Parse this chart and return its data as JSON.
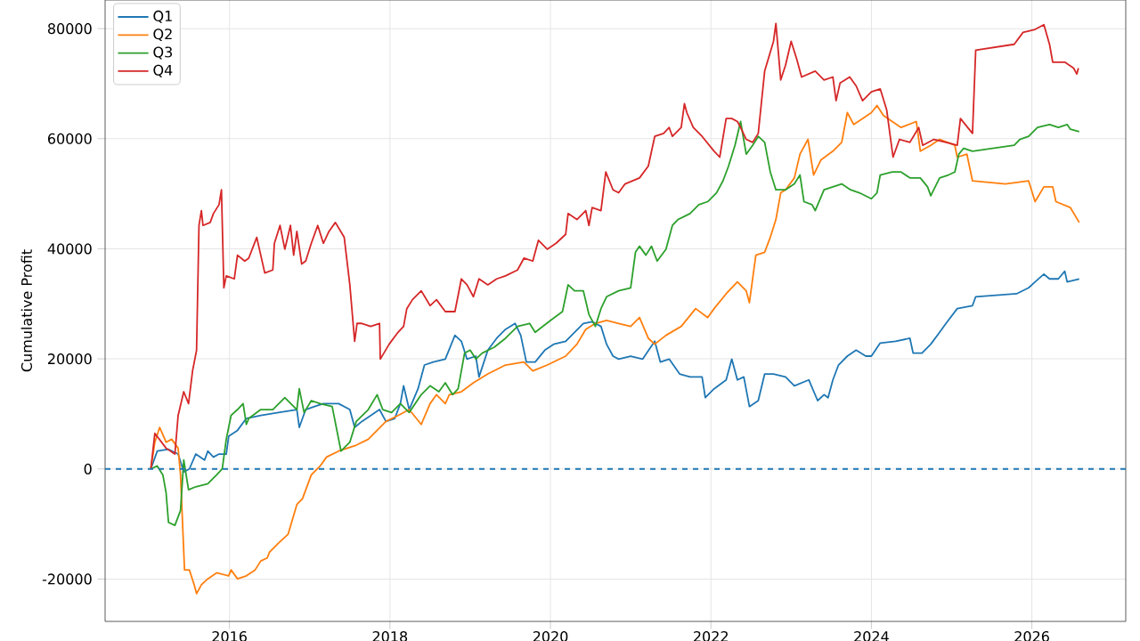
{
  "chart_data": {
    "type": "line",
    "ylabel": "Cumulative Profit",
    "xlim": [
      2014.45,
      2027.17
    ],
    "ylim": [
      -27700,
      85200
    ],
    "xticks": [
      2016,
      2018,
      2020,
      2022,
      2024,
      2026
    ],
    "yticks": [
      -20000,
      0,
      20000,
      40000,
      60000,
      80000
    ],
    "grid": true,
    "legend": "top left",
    "line_style": "solid",
    "ref_lines": [
      {
        "axis": "y",
        "value": 0,
        "color": "#1f77b4",
        "line_style": "dashed"
      }
    ],
    "series": [
      {
        "name": "Q1",
        "color": "#1f77b4",
        "x": [
          2015.02,
          2015.1,
          2015.24,
          2015.36,
          2015.43,
          2015.5,
          2015.58,
          2015.69,
          2015.73,
          2015.8,
          2015.87,
          2015.96,
          2015.99,
          2016.1,
          2016.21,
          2016.39,
          2016.61,
          2016.84,
          2016.87,
          2016.95,
          2017.06,
          2017.17,
          2017.36,
          2017.5,
          2017.56,
          2017.65,
          2017.87,
          2017.95,
          2018.06,
          2018.13,
          2018.17,
          2018.24,
          2018.35,
          2018.43,
          2018.54,
          2018.69,
          2018.81,
          2018.89,
          2018.96,
          2019.07,
          2019.11,
          2019.22,
          2019.33,
          2019.44,
          2019.56,
          2019.63,
          2019.7,
          2019.81,
          2019.93,
          2020.04,
          2020.19,
          2020.3,
          2020.41,
          2020.52,
          2020.63,
          2020.7,
          2020.78,
          2020.85,
          2021.0,
          2021.15,
          2021.3,
          2021.37,
          2021.48,
          2021.61,
          2021.74,
          2021.89,
          2021.93,
          2022.04,
          2022.19,
          2022.26,
          2022.33,
          2022.41,
          2022.48,
          2022.59,
          2022.67,
          2022.78,
          2022.93,
          2023.04,
          2023.22,
          2023.33,
          2023.41,
          2023.46,
          2023.52,
          2023.59,
          2023.7,
          2023.81,
          2023.93,
          2024.0,
          2024.11,
          2024.3,
          2024.48,
          2024.52,
          2024.63,
          2024.74,
          2024.85,
          2024.93,
          2025.07,
          2025.26,
          2025.3,
          2025.81,
          2025.96,
          2026.04,
          2026.15,
          2026.22,
          2026.33,
          2026.41,
          2026.44,
          2026.59
        ],
        "values": [
          0,
          3240,
          3560,
          2700,
          -540,
          0,
          2700,
          1620,
          3240,
          2160,
          2700,
          2700,
          5930,
          7010,
          9170,
          9710,
          10250,
          10790,
          7550,
          10790,
          11330,
          11870,
          11870,
          10790,
          7550,
          8630,
          10790,
          8630,
          9170,
          11870,
          15110,
          10790,
          14570,
          18880,
          19420,
          19960,
          24280,
          23200,
          19960,
          20500,
          16720,
          21580,
          23740,
          25360,
          26440,
          24280,
          19420,
          19420,
          21580,
          22660,
          23200,
          24820,
          26440,
          26760,
          25900,
          22660,
          20500,
          19960,
          20500,
          19960,
          23200,
          19420,
          19960,
          17260,
          16720,
          16720,
          12950,
          14570,
          16180,
          19960,
          16180,
          16720,
          11330,
          12410,
          17260,
          17260,
          16720,
          15110,
          16180,
          12410,
          13490,
          12950,
          16180,
          18880,
          20500,
          21580,
          20500,
          20500,
          22870,
          23200,
          23740,
          21040,
          21040,
          22660,
          24820,
          26440,
          29130,
          29670,
          31290,
          31830,
          32910,
          33990,
          35390,
          34530,
          34530,
          35930,
          33990,
          34530
        ]
      },
      {
        "name": "Q2",
        "color": "#ff7f0e",
        "x": [
          2015.02,
          2015.07,
          2015.13,
          2015.21,
          2015.28,
          2015.36,
          2015.39,
          2015.44,
          2015.5,
          2015.56,
          2015.59,
          2015.65,
          2015.73,
          2015.84,
          2015.99,
          2016.02,
          2016.1,
          2016.21,
          2016.32,
          2016.39,
          2016.47,
          2016.5,
          2016.61,
          2016.73,
          2016.84,
          2016.91,
          2017.02,
          2017.13,
          2017.21,
          2017.36,
          2017.58,
          2017.73,
          2017.84,
          2017.95,
          2018.1,
          2018.24,
          2018.39,
          2018.5,
          2018.58,
          2018.69,
          2018.74,
          2018.89,
          2019.04,
          2019.22,
          2019.44,
          2019.67,
          2019.78,
          2019.96,
          2020.19,
          2020.33,
          2020.44,
          2020.56,
          2020.7,
          2020.85,
          2021.0,
          2021.11,
          2021.22,
          2021.3,
          2021.44,
          2021.63,
          2021.81,
          2021.96,
          2022.04,
          2022.19,
          2022.33,
          2022.44,
          2022.48,
          2022.56,
          2022.67,
          2022.74,
          2022.81,
          2022.87,
          2022.93,
          2023.04,
          2023.11,
          2023.21,
          2023.28,
          2023.37,
          2023.52,
          2023.63,
          2023.7,
          2023.78,
          2023.89,
          2024.0,
          2024.07,
          2024.15,
          2024.26,
          2024.37,
          2024.56,
          2024.61,
          2024.74,
          2024.85,
          2025.04,
          2025.07,
          2025.19,
          2025.26,
          2025.67,
          2025.96,
          2026.04,
          2026.15,
          2026.26,
          2026.3,
          2026.48,
          2026.59
        ],
        "values": [
          0,
          4860,
          7550,
          4860,
          5400,
          3780,
          -1080,
          -18340,
          -18340,
          -21040,
          -22660,
          -21040,
          -19960,
          -18880,
          -19420,
          -18340,
          -19960,
          -19420,
          -18340,
          -16720,
          -16180,
          -15110,
          -13490,
          -11870,
          -6470,
          -5400,
          -1080,
          540,
          2160,
          3240,
          4320,
          5400,
          7010,
          8630,
          9710,
          10790,
          8090,
          11870,
          13490,
          11870,
          13490,
          14030,
          15650,
          17260,
          18880,
          19420,
          17800,
          18880,
          20500,
          22660,
          25360,
          26440,
          26980,
          26440,
          25900,
          27510,
          23740,
          22660,
          24280,
          25900,
          29130,
          27510,
          29130,
          31830,
          33990,
          32370,
          30210,
          38840,
          39380,
          42080,
          45320,
          50170,
          50710,
          52870,
          57190,
          59880,
          53410,
          56110,
          57730,
          59340,
          64740,
          62580,
          63660,
          64740,
          66040,
          64200,
          63120,
          62040,
          63120,
          57730,
          58800,
          59880,
          58800,
          56650,
          57190,
          52330,
          51790,
          52330,
          48560,
          51250,
          51250,
          48560,
          47480,
          44780
        ]
      },
      {
        "name": "Q3",
        "color": "#2ca02c",
        "x": [
          2015.02,
          2015.1,
          2015.17,
          2015.21,
          2015.24,
          2015.32,
          2015.39,
          2015.43,
          2015.49,
          2015.58,
          2015.73,
          2015.84,
          2015.91,
          2015.96,
          2016.02,
          2016.1,
          2016.17,
          2016.21,
          2016.24,
          2016.39,
          2016.54,
          2016.69,
          2016.84,
          2016.87,
          2016.93,
          2017.02,
          2017.13,
          2017.28,
          2017.39,
          2017.5,
          2017.58,
          2017.73,
          2017.84,
          2017.91,
          2018.02,
          2018.13,
          2018.24,
          2018.39,
          2018.5,
          2018.61,
          2018.69,
          2018.78,
          2018.85,
          2018.93,
          2019.0,
          2019.07,
          2019.15,
          2019.3,
          2019.44,
          2019.59,
          2019.74,
          2019.81,
          2020.0,
          2020.15,
          2020.22,
          2020.3,
          2020.41,
          2020.48,
          2020.56,
          2020.63,
          2020.7,
          2020.85,
          2021.0,
          2021.06,
          2021.11,
          2021.19,
          2021.26,
          2021.33,
          2021.44,
          2021.52,
          2021.59,
          2021.74,
          2021.85,
          2021.96,
          2022.07,
          2022.15,
          2022.22,
          2022.3,
          2022.37,
          2022.44,
          2022.52,
          2022.59,
          2022.67,
          2022.74,
          2022.81,
          2022.93,
          2023.04,
          2023.11,
          2023.16,
          2023.26,
          2023.3,
          2023.41,
          2023.52,
          2023.63,
          2023.74,
          2023.85,
          2024.0,
          2024.07,
          2024.11,
          2024.26,
          2024.37,
          2024.48,
          2024.61,
          2024.7,
          2024.74,
          2024.85,
          2024.96,
          2025.04,
          2025.09,
          2025.15,
          2025.26,
          2025.78,
          2025.85,
          2025.96,
          2026.07,
          2026.22,
          2026.33,
          2026.44,
          2026.48,
          2026.59
        ],
        "values": [
          0,
          540,
          -1080,
          -4320,
          -9710,
          -10250,
          -7550,
          1620,
          -3780,
          -3240,
          -2700,
          -1080,
          0,
          5400,
          9710,
          10790,
          11870,
          8090,
          9170,
          10790,
          10790,
          12950,
          10790,
          14570,
          10250,
          12410,
          11870,
          11330,
          3240,
          4860,
          8630,
          10790,
          13490,
          10790,
          10250,
          11870,
          10250,
          13490,
          15110,
          14030,
          15650,
          13490,
          14570,
          21040,
          21580,
          19960,
          21040,
          22120,
          23740,
          25900,
          26440,
          24820,
          26980,
          28590,
          33450,
          32370,
          32370,
          28050,
          25900,
          29130,
          31290,
          32370,
          32910,
          39380,
          40460,
          38840,
          40460,
          37770,
          39920,
          44240,
          45320,
          46400,
          48020,
          48560,
          50170,
          52330,
          55030,
          58800,
          63120,
          57190,
          58800,
          60420,
          59340,
          53950,
          50710,
          50710,
          51790,
          53410,
          48560,
          48020,
          46940,
          50710,
          51250,
          51790,
          50710,
          50170,
          49090,
          50170,
          53410,
          53950,
          53950,
          52870,
          52870,
          51250,
          49630,
          52870,
          53410,
          53950,
          57190,
          58260,
          57730,
          58800,
          59880,
          60420,
          62040,
          62580,
          62040,
          62580,
          61720,
          61290
        ]
      },
      {
        "name": "Q4",
        "color": "#d62728",
        "x": [
          2015.02,
          2015.07,
          2015.21,
          2015.32,
          2015.36,
          2015.43,
          2015.49,
          2015.54,
          2015.59,
          2015.62,
          2015.65,
          2015.67,
          2015.76,
          2015.8,
          2015.87,
          2015.9,
          2015.93,
          2015.96,
          2016.06,
          2016.1,
          2016.19,
          2016.24,
          2016.34,
          2016.44,
          2016.54,
          2016.56,
          2016.63,
          2016.69,
          2016.76,
          2016.8,
          2016.84,
          2016.9,
          2016.95,
          2017.02,
          2017.1,
          2017.17,
          2017.24,
          2017.32,
          2017.43,
          2017.5,
          2017.56,
          2017.59,
          2017.65,
          2017.76,
          2017.87,
          2017.88,
          2017.99,
          2018.1,
          2018.17,
          2018.21,
          2018.28,
          2018.39,
          2018.5,
          2018.58,
          2018.69,
          2018.81,
          2018.89,
          2018.96,
          2019.04,
          2019.11,
          2019.22,
          2019.33,
          2019.44,
          2019.59,
          2019.67,
          2019.78,
          2019.85,
          2019.96,
          2020.07,
          2020.19,
          2020.22,
          2020.33,
          2020.44,
          2020.48,
          2020.52,
          2020.63,
          2020.69,
          2020.78,
          2020.85,
          2020.93,
          2021.11,
          2021.22,
          2021.3,
          2021.41,
          2021.48,
          2021.52,
          2021.63,
          2021.67,
          2021.7,
          2021.78,
          2021.89,
          2022.04,
          2022.11,
          2022.19,
          2022.26,
          2022.33,
          2022.37,
          2022.44,
          2022.52,
          2022.59,
          2022.67,
          2022.78,
          2022.81,
          2022.87,
          2022.93,
          2023.0,
          2023.07,
          2023.13,
          2023.3,
          2023.41,
          2023.52,
          2023.56,
          2023.61,
          2023.73,
          2023.81,
          2023.89,
          2024.0,
          2024.11,
          2024.19,
          2024.22,
          2024.27,
          2024.35,
          2024.48,
          2024.59,
          2024.64,
          2024.78,
          2024.93,
          2025.07,
          2025.11,
          2025.26,
          2025.3,
          2025.78,
          2025.89,
          2026.04,
          2026.15,
          2026.22,
          2026.26,
          2026.41,
          2026.52,
          2026.56,
          2026.58
        ],
        "values": [
          0,
          6470,
          3780,
          2700,
          9710,
          14030,
          11870,
          17800,
          21580,
          44240,
          46940,
          44240,
          44780,
          46400,
          48020,
          50710,
          32900,
          35070,
          34530,
          38840,
          37770,
          38300,
          42080,
          35610,
          36150,
          41000,
          44240,
          39920,
          44240,
          38840,
          43160,
          37230,
          37770,
          41000,
          44240,
          41000,
          43160,
          44780,
          42080,
          33450,
          23200,
          26440,
          26440,
          25900,
          26440,
          19960,
          22660,
          24820,
          25900,
          29130,
          30750,
          32370,
          29670,
          30750,
          28590,
          28590,
          34530,
          33450,
          31290,
          34530,
          33450,
          34530,
          35070,
          36150,
          38300,
          37770,
          41540,
          39920,
          41000,
          42620,
          46400,
          45320,
          46940,
          44240,
          47480,
          46940,
          53950,
          50710,
          50170,
          51790,
          52870,
          55030,
          60420,
          60960,
          62040,
          60420,
          62040,
          66360,
          64740,
          62040,
          60420,
          57730,
          56650,
          63660,
          63660,
          63120,
          62040,
          59880,
          59340,
          60960,
          72290,
          77690,
          80920,
          70670,
          73360,
          77690,
          74450,
          71210,
          72290,
          70670,
          71210,
          66900,
          70130,
          71210,
          69590,
          66900,
          68520,
          69050,
          65280,
          62040,
          56650,
          59880,
          59340,
          62040,
          58800,
          59880,
          59340,
          58800,
          63660,
          60960,
          76070,
          77150,
          79310,
          79850,
          80710,
          77150,
          73910,
          73910,
          72830,
          71750,
          72830
        ]
      }
    ]
  }
}
